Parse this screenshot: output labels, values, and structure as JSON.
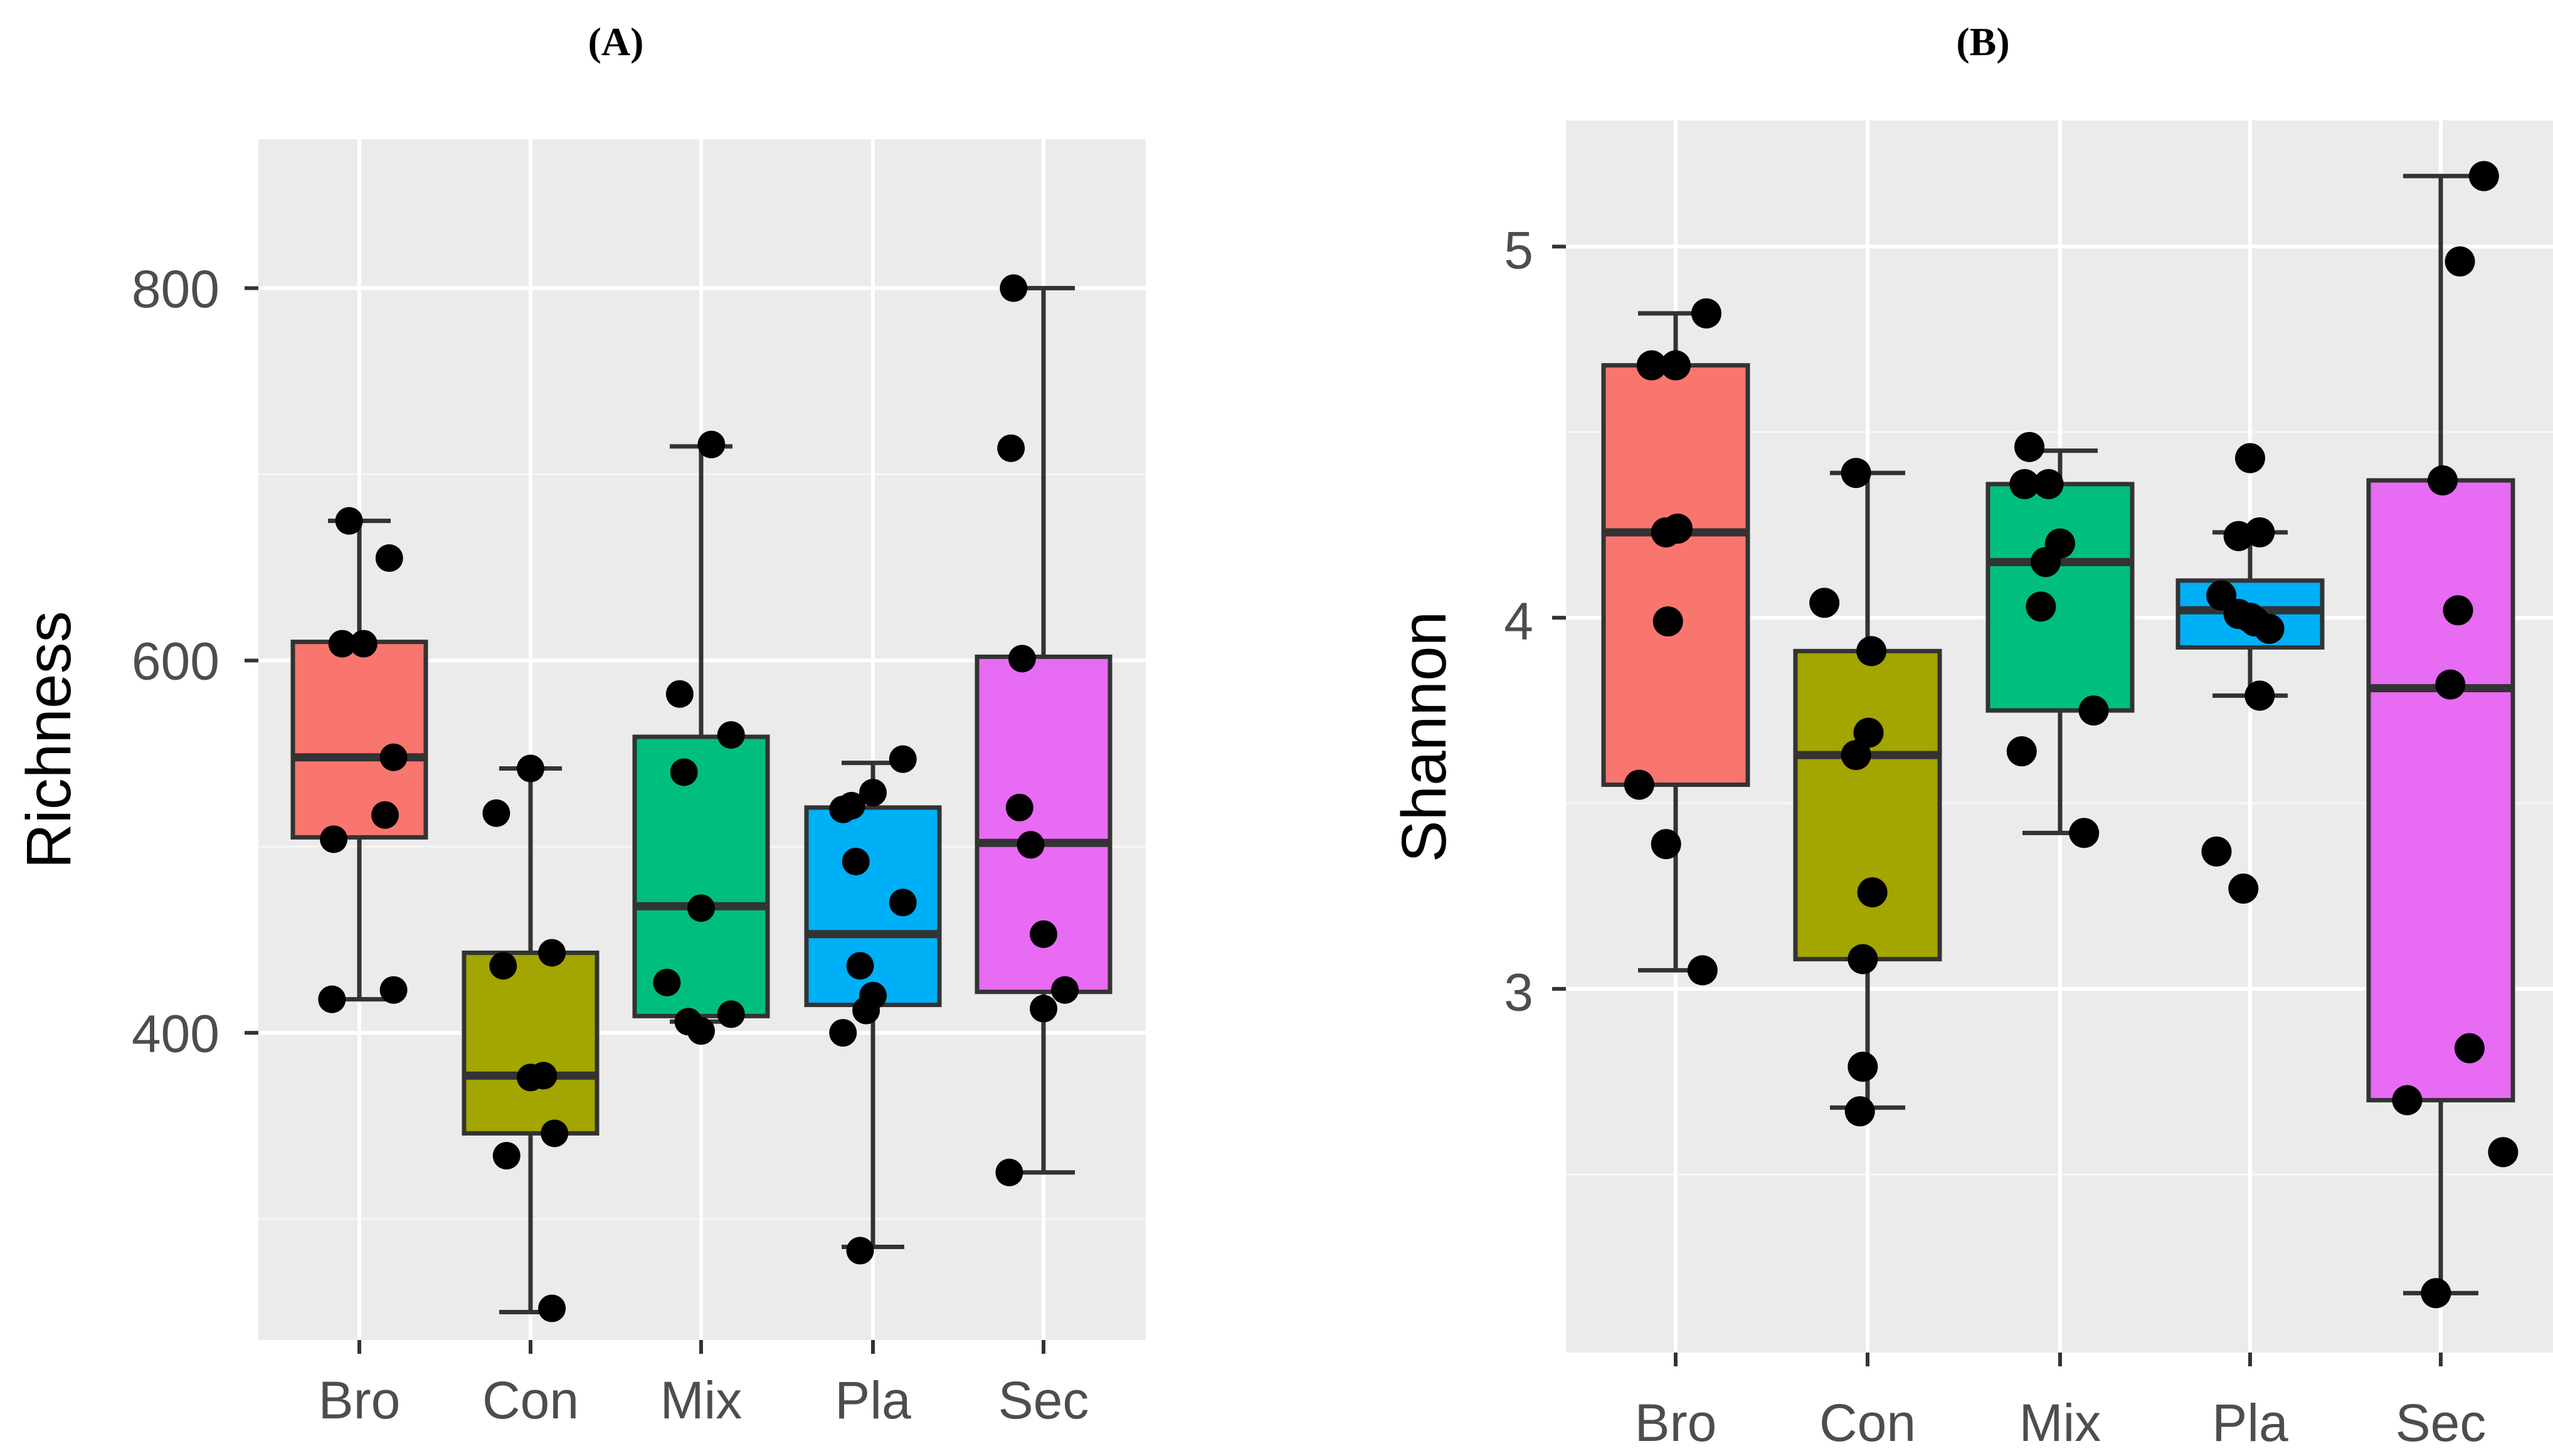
{
  "chart_data": [
    {
      "panel_label": "(A)",
      "type": "boxplot",
      "ylabel": "Richness",
      "xlabel": "",
      "ylim": [
        235,
        880
      ],
      "yticks": [
        400,
        600,
        800
      ],
      "ytick_labels": [
        "400",
        "600",
        "800"
      ],
      "minor_yticks": [
        300,
        500,
        700
      ],
      "categories": [
        "Bro",
        "Con",
        "Mix",
        "Pla",
        "Sec"
      ],
      "colors": [
        "#f8766d",
        "#a3a500",
        "#00bf7d",
        "#00b0f6",
        "#e76bf3"
      ],
      "boxes": [
        {
          "whisker_low": 418,
          "q1": 505,
          "median": 548,
          "q3": 610,
          "whisker_high": 675
        },
        {
          "whisker_low": 250,
          "q1": 346,
          "median": 377,
          "q3": 443,
          "whisker_high": 542
        },
        {
          "whisker_low": 406,
          "q1": 409,
          "median": 468,
          "q3": 559,
          "whisker_high": 715
        },
        {
          "whisker_low": 285,
          "q1": 415,
          "median": 453,
          "q3": 521,
          "whisker_high": 545
        },
        {
          "whisker_low": 325,
          "q1": 422,
          "median": 502,
          "q3": 602,
          "whisker_high": 800
        }
      ],
      "points": [
        [
          [
            -0.32,
            418
          ],
          [
            -0.3,
            504
          ],
          [
            -0.2,
            609
          ],
          [
            0.05,
            609
          ],
          [
            -0.12,
            675
          ],
          [
            0.35,
            655
          ],
          [
            0.3,
            517
          ],
          [
            0.4,
            548
          ],
          [
            0.4,
            423
          ]
        ],
        [
          [
            -0.4,
            518
          ],
          [
            -0.32,
            436
          ],
          [
            -0.28,
            334
          ],
          [
            0.0,
            376
          ],
          [
            0.15,
            377
          ],
          [
            0.25,
            443
          ],
          [
            0.28,
            346
          ],
          [
            0.25,
            252
          ],
          [
            0.0,
            542
          ]
        ],
        [
          [
            -0.4,
            427
          ],
          [
            -0.25,
            582
          ],
          [
            -0.2,
            540
          ],
          [
            -0.15,
            406
          ],
          [
            0.0,
            467
          ],
          [
            0.0,
            401
          ],
          [
            0.12,
            716
          ],
          [
            0.35,
            560
          ],
          [
            0.35,
            410
          ]
        ],
        [
          [
            -0.35,
            400
          ],
          [
            -0.35,
            520
          ],
          [
            -0.25,
            522
          ],
          [
            -0.2,
            492
          ],
          [
            -0.15,
            436
          ],
          [
            -0.08,
            412
          ],
          [
            0.0,
            529
          ],
          [
            0.0,
            420
          ],
          [
            0.35,
            547
          ],
          [
            0.35,
            470
          ],
          [
            -0.15,
            283
          ]
        ],
        [
          [
            -0.35,
            800
          ],
          [
            -0.38,
            714
          ],
          [
            -0.25,
            601
          ],
          [
            -0.28,
            521
          ],
          [
            -0.15,
            501
          ],
          [
            -0.4,
            325
          ],
          [
            0.0,
            413
          ],
          [
            0.0,
            453
          ],
          [
            0.25,
            423
          ]
        ]
      ]
    },
    {
      "panel_label": "(B)",
      "type": "boxplot",
      "ylabel": "Shannon",
      "xlabel": "",
      "ylim": [
        2.02,
        5.34
      ],
      "yticks": [
        3,
        4,
        5
      ],
      "ytick_labels": [
        "3",
        "4",
        "5"
      ],
      "minor_yticks": [
        2.5,
        3.5,
        4.5
      ],
      "categories": [
        "Bro",
        "Con",
        "Mix",
        "Pla",
        "Sec"
      ],
      "colors": [
        "#f8766d",
        "#a3a500",
        "#00bf7d",
        "#00b0f6",
        "#e76bf3"
      ],
      "boxes": [
        {
          "whisker_low": 3.05,
          "q1": 3.55,
          "median": 4.23,
          "q3": 4.68,
          "whisker_high": 4.82
        },
        {
          "whisker_low": 2.68,
          "q1": 3.08,
          "median": 3.63,
          "q3": 3.91,
          "whisker_high": 4.39
        },
        {
          "whisker_low": 3.42,
          "q1": 3.75,
          "median": 4.15,
          "q3": 4.36,
          "whisker_high": 4.45
        },
        {
          "whisker_low": 3.79,
          "q1": 3.92,
          "median": 4.02,
          "q3": 4.1,
          "whisker_high": 4.23
        },
        {
          "whisker_low": 2.18,
          "q1": 2.7,
          "median": 3.81,
          "q3": 4.37,
          "whisker_high": 5.19
        }
      ],
      "points": [
        [
          [
            -0.38,
            3.55
          ],
          [
            -0.1,
            3.39
          ],
          [
            -0.25,
            4.68
          ],
          [
            0.0,
            4.68
          ],
          [
            -0.1,
            4.23
          ],
          [
            0.02,
            4.24
          ],
          [
            -0.08,
            3.99
          ],
          [
            0.28,
            3.05
          ],
          [
            0.32,
            4.82
          ]
        ],
        [
          [
            -0.45,
            4.04
          ],
          [
            -0.12,
            4.39
          ],
          [
            -0.12,
            3.63
          ],
          [
            0.04,
            3.91
          ],
          [
            0.01,
            3.69
          ],
          [
            0.05,
            3.26
          ],
          [
            -0.05,
            3.08
          ],
          [
            -0.05,
            2.79
          ],
          [
            -0.08,
            2.67
          ]
        ],
        [
          [
            -0.37,
            4.36
          ],
          [
            -0.32,
            4.46
          ],
          [
            -0.4,
            3.64
          ],
          [
            -0.12,
            4.36
          ],
          [
            -0.15,
            4.15
          ],
          [
            -0.2,
            4.03
          ],
          [
            0.0,
            4.2
          ],
          [
            0.35,
            3.75
          ],
          [
            0.25,
            3.42
          ]
        ],
        [
          [
            -0.35,
            3.37
          ],
          [
            -0.3,
            4.06
          ],
          [
            -0.12,
            4.01
          ],
          [
            0.0,
            4.0
          ],
          [
            -0.12,
            4.22
          ],
          [
            0.1,
            4.23
          ],
          [
            0.0,
            4.43
          ],
          [
            0.2,
            3.97
          ],
          [
            0.1,
            3.79
          ],
          [
            0.05,
            3.99
          ],
          [
            -0.07,
            3.27
          ]
        ],
        [
          [
            -0.35,
            2.7
          ],
          [
            0.02,
            4.37
          ],
          [
            0.1,
            3.82
          ],
          [
            0.18,
            4.02
          ],
          [
            0.2,
            4.96
          ],
          [
            0.3,
            2.84
          ],
          [
            0.45,
            5.19
          ],
          [
            -0.05,
            2.18
          ],
          [
            0.65,
            2.56
          ]
        ]
      ]
    }
  ]
}
